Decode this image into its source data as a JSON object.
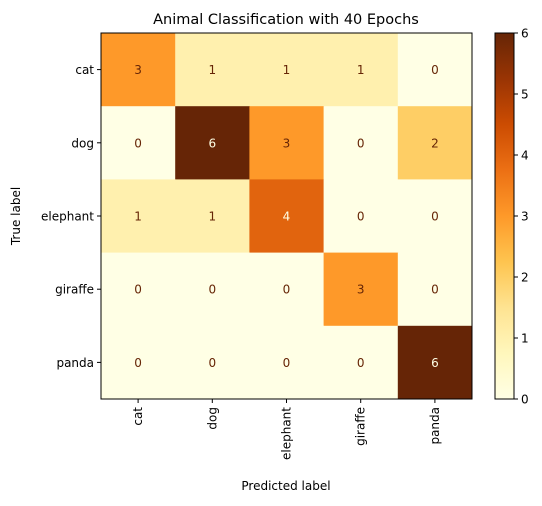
{
  "chart_data": {
    "type": "heatmap",
    "title": "Animal Classification with 40 Epochs",
    "xlabel": "Predicted label",
    "ylabel": "True label",
    "x_categories": [
      "cat",
      "dog",
      "elephant",
      "giraffe",
      "panda"
    ],
    "y_categories": [
      "cat",
      "dog",
      "elephant",
      "giraffe",
      "panda"
    ],
    "values": [
      [
        3,
        1,
        1,
        1,
        0
      ],
      [
        0,
        6,
        3,
        0,
        2
      ],
      [
        1,
        1,
        4,
        0,
        0
      ],
      [
        0,
        0,
        0,
        3,
        0
      ],
      [
        0,
        0,
        0,
        0,
        6
      ]
    ],
    "colorbar": {
      "min": 0,
      "max": 6,
      "ticks": [
        0,
        1,
        2,
        3,
        4,
        5,
        6
      ],
      "colormap": "YlOrBr"
    },
    "annotation_colors": {
      "on_light": "#662506",
      "on_dark": "#ffffe5"
    },
    "grid": false
  }
}
